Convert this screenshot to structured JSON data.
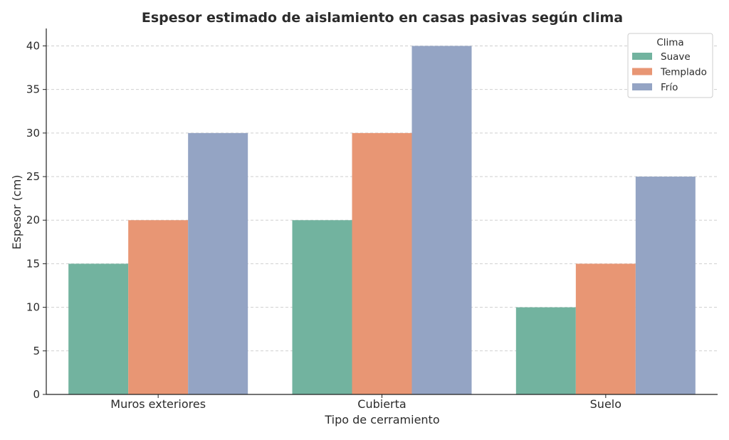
{
  "chart_data": {
    "type": "bar",
    "title": "Espesor estimado de aislamiento en casas pasivas según clima",
    "xlabel": "Tipo de cerramiento",
    "ylabel": "Espesor (cm)",
    "categories": [
      "Muros exteriores",
      "Cubierta",
      "Suelo"
    ],
    "series": [
      {
        "name": "Suave",
        "color": "#72b39f",
        "values": [
          15,
          20,
          10
        ]
      },
      {
        "name": "Templado",
        "color": "#e89674",
        "values": [
          20,
          30,
          15
        ]
      },
      {
        "name": "Frío",
        "color": "#94a4c4",
        "values": [
          30,
          40,
          25
        ]
      }
    ],
    "ylim": [
      0,
      42
    ],
    "yticks": [
      0,
      5,
      10,
      15,
      20,
      25,
      30,
      35,
      40
    ],
    "grid": true,
    "legend": {
      "title": "Clima",
      "placement": "top-right"
    }
  }
}
